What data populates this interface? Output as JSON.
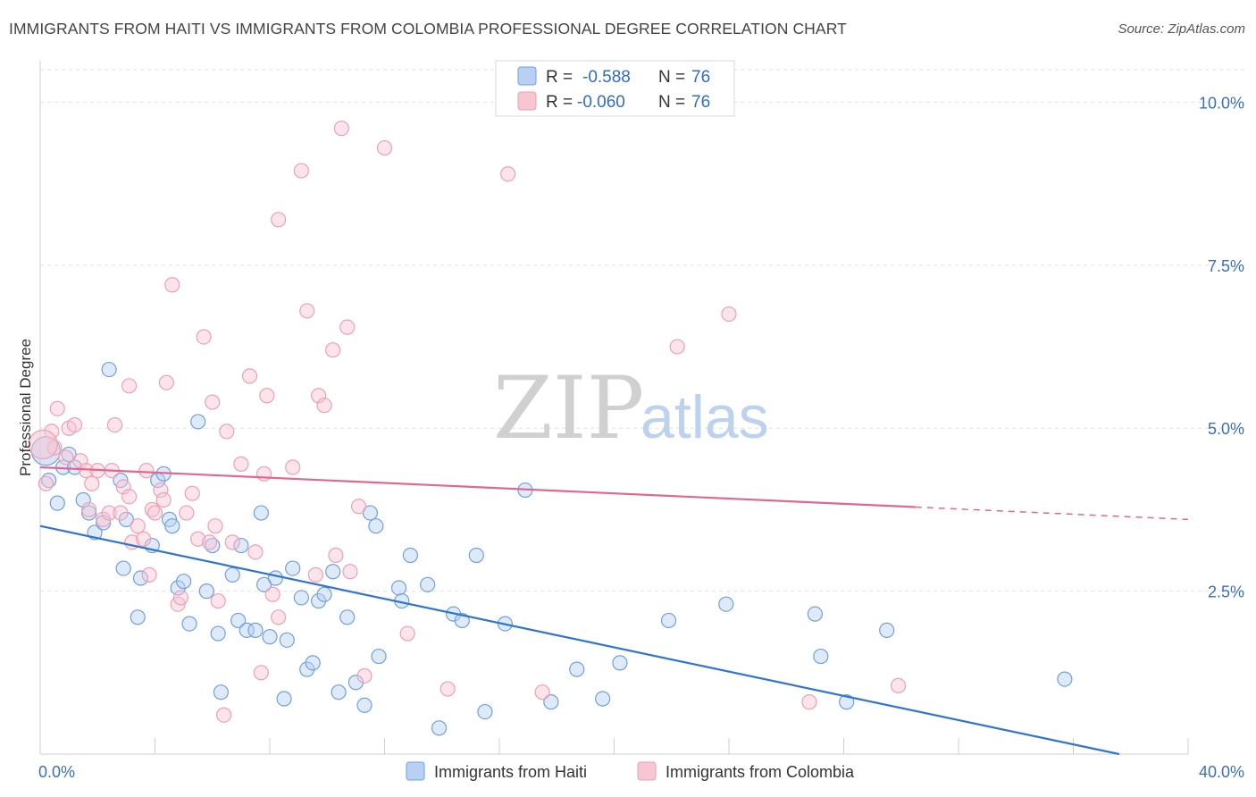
{
  "chart_data": {
    "type": "scatter",
    "title": "IMMIGRANTS FROM HAITI VS IMMIGRANTS FROM COLOMBIA PROFESSIONAL DEGREE CORRELATION CHART",
    "source": "Source: ZipAtlas.com",
    "ylabel": "Professional Degree",
    "xlim": [
      0,
      40
    ],
    "ylim": [
      0,
      10.5
    ],
    "x_ticks": [
      {
        "v": 0,
        "label": "0.0%"
      },
      {
        "v": 40,
        "label": "40.0%"
      }
    ],
    "y_ticks": [
      {
        "v": 2.5,
        "label": "2.5%"
      },
      {
        "v": 5.0,
        "label": "5.0%"
      },
      {
        "v": 7.5,
        "label": "7.5%"
      },
      {
        "v": 10.0,
        "label": "10.0%"
      }
    ],
    "watermark": {
      "zip": "ZIP",
      "atlas": "atlas"
    },
    "legend": {
      "r_label": "R =",
      "n_label": "N =",
      "items": [
        {
          "r": "-0.588",
          "n": "76"
        },
        {
          "r": "-0.060",
          "n": "76"
        }
      ]
    },
    "series": [
      {
        "name": "Immigrants from Haiti",
        "color": "#6fa0e0",
        "fill": "#b8d0f2",
        "trend_color": "#2f74cf",
        "trend": {
          "x0": 0,
          "y0": 3.5,
          "x1": 37.6,
          "y1": 0.0,
          "solid_until": 37.6
        },
        "points": [
          [
            0.3,
            4.2
          ],
          [
            0.6,
            3.85
          ],
          [
            0.8,
            4.4
          ],
          [
            1.0,
            4.6
          ],
          [
            1.2,
            4.4
          ],
          [
            1.5,
            3.9
          ],
          [
            1.7,
            3.7
          ],
          [
            1.9,
            3.4
          ],
          [
            2.2,
            3.55
          ],
          [
            2.4,
            5.9
          ],
          [
            2.8,
            4.2
          ],
          [
            2.9,
            2.85
          ],
          [
            3.0,
            3.6
          ],
          [
            3.5,
            2.7
          ],
          [
            3.4,
            2.1
          ],
          [
            3.9,
            3.2
          ],
          [
            4.1,
            4.2
          ],
          [
            4.3,
            4.3
          ],
          [
            4.5,
            3.6
          ],
          [
            4.6,
            3.5
          ],
          [
            4.8,
            2.55
          ],
          [
            5.0,
            2.65
          ],
          [
            5.2,
            2.0
          ],
          [
            5.5,
            5.1
          ],
          [
            5.8,
            2.5
          ],
          [
            6.0,
            3.2
          ],
          [
            6.2,
            1.85
          ],
          [
            6.3,
            0.95
          ],
          [
            6.7,
            2.75
          ],
          [
            6.9,
            2.05
          ],
          [
            7.0,
            3.2
          ],
          [
            7.2,
            1.9
          ],
          [
            7.5,
            1.9
          ],
          [
            7.7,
            3.7
          ],
          [
            7.8,
            2.6
          ],
          [
            8.0,
            1.8
          ],
          [
            8.2,
            2.7
          ],
          [
            8.5,
            0.85
          ],
          [
            8.6,
            1.75
          ],
          [
            8.8,
            2.85
          ],
          [
            9.1,
            2.4
          ],
          [
            9.3,
            1.3
          ],
          [
            9.5,
            1.4
          ],
          [
            9.7,
            2.35
          ],
          [
            9.9,
            2.45
          ],
          [
            10.2,
            2.8
          ],
          [
            10.4,
            0.95
          ],
          [
            10.7,
            2.1
          ],
          [
            11.0,
            1.1
          ],
          [
            11.3,
            0.75
          ],
          [
            11.5,
            3.7
          ],
          [
            11.7,
            3.5
          ],
          [
            11.8,
            1.5
          ],
          [
            12.5,
            2.55
          ],
          [
            12.6,
            2.35
          ],
          [
            12.9,
            3.05
          ],
          [
            13.5,
            2.6
          ],
          [
            13.9,
            0.4
          ],
          [
            14.4,
            2.15
          ],
          [
            14.7,
            2.05
          ],
          [
            15.2,
            3.05
          ],
          [
            15.5,
            0.65
          ],
          [
            16.2,
            2.0
          ],
          [
            16.9,
            4.05
          ],
          [
            17.8,
            0.8
          ],
          [
            18.7,
            1.3
          ],
          [
            19.6,
            0.85
          ],
          [
            20.2,
            1.4
          ],
          [
            21.9,
            2.05
          ],
          [
            23.9,
            2.3
          ],
          [
            27.0,
            2.15
          ],
          [
            27.2,
            1.5
          ],
          [
            28.1,
            0.8
          ],
          [
            29.5,
            1.9
          ],
          [
            35.7,
            1.15
          ],
          [
            0.2,
            4.65
          ]
        ]
      },
      {
        "name": "Immigrants from Colombia",
        "color": "#ee9fb5",
        "fill": "#f7c6d3",
        "trend_color": "#e06890",
        "trend": {
          "x0": 0,
          "y0": 4.4,
          "x1": 40,
          "y1": 3.6,
          "solid_until": 30.5
        },
        "points": [
          [
            0.2,
            4.15
          ],
          [
            0.4,
            4.95
          ],
          [
            0.5,
            4.7
          ],
          [
            0.6,
            5.3
          ],
          [
            0.9,
            4.55
          ],
          [
            1.0,
            5.0
          ],
          [
            1.2,
            5.05
          ],
          [
            1.4,
            4.5
          ],
          [
            1.6,
            4.35
          ],
          [
            1.7,
            3.75
          ],
          [
            1.8,
            4.15
          ],
          [
            2.0,
            4.35
          ],
          [
            2.2,
            3.6
          ],
          [
            2.4,
            3.7
          ],
          [
            2.5,
            4.35
          ],
          [
            2.6,
            5.05
          ],
          [
            2.8,
            3.7
          ],
          [
            2.9,
            4.1
          ],
          [
            3.1,
            3.95
          ],
          [
            3.1,
            5.65
          ],
          [
            3.2,
            3.25
          ],
          [
            3.4,
            3.5
          ],
          [
            3.6,
            3.3
          ],
          [
            3.7,
            4.35
          ],
          [
            3.8,
            2.75
          ],
          [
            3.9,
            3.75
          ],
          [
            4.0,
            3.7
          ],
          [
            4.2,
            4.05
          ],
          [
            4.3,
            3.9
          ],
          [
            4.4,
            5.7
          ],
          [
            4.6,
            7.2
          ],
          [
            4.8,
            2.3
          ],
          [
            4.9,
            2.4
          ],
          [
            5.1,
            3.7
          ],
          [
            5.3,
            4.0
          ],
          [
            5.5,
            3.3
          ],
          [
            5.7,
            6.4
          ],
          [
            5.9,
            3.25
          ],
          [
            6.0,
            5.4
          ],
          [
            6.1,
            3.5
          ],
          [
            6.2,
            2.35
          ],
          [
            6.4,
            0.6
          ],
          [
            6.5,
            4.95
          ],
          [
            6.7,
            3.25
          ],
          [
            7.0,
            4.45
          ],
          [
            7.3,
            5.8
          ],
          [
            7.5,
            3.1
          ],
          [
            7.7,
            1.25
          ],
          [
            7.8,
            4.3
          ],
          [
            7.9,
            5.5
          ],
          [
            8.1,
            2.45
          ],
          [
            8.3,
            8.2
          ],
          [
            8.3,
            2.1
          ],
          [
            8.8,
            4.4
          ],
          [
            9.1,
            8.95
          ],
          [
            9.3,
            6.8
          ],
          [
            9.6,
            2.75
          ],
          [
            9.7,
            5.5
          ],
          [
            9.9,
            5.35
          ],
          [
            10.2,
            6.2
          ],
          [
            10.3,
            3.05
          ],
          [
            10.5,
            9.6
          ],
          [
            10.7,
            6.55
          ],
          [
            10.8,
            2.8
          ],
          [
            11.1,
            3.8
          ],
          [
            11.3,
            1.2
          ],
          [
            12.0,
            9.3
          ],
          [
            12.8,
            1.85
          ],
          [
            14.2,
            1.0
          ],
          [
            16.3,
            8.9
          ],
          [
            17.5,
            0.95
          ],
          [
            22.2,
            6.25
          ],
          [
            24.0,
            6.75
          ],
          [
            26.8,
            0.8
          ],
          [
            29.9,
            1.05
          ],
          [
            0.1,
            4.75
          ]
        ]
      }
    ]
  }
}
